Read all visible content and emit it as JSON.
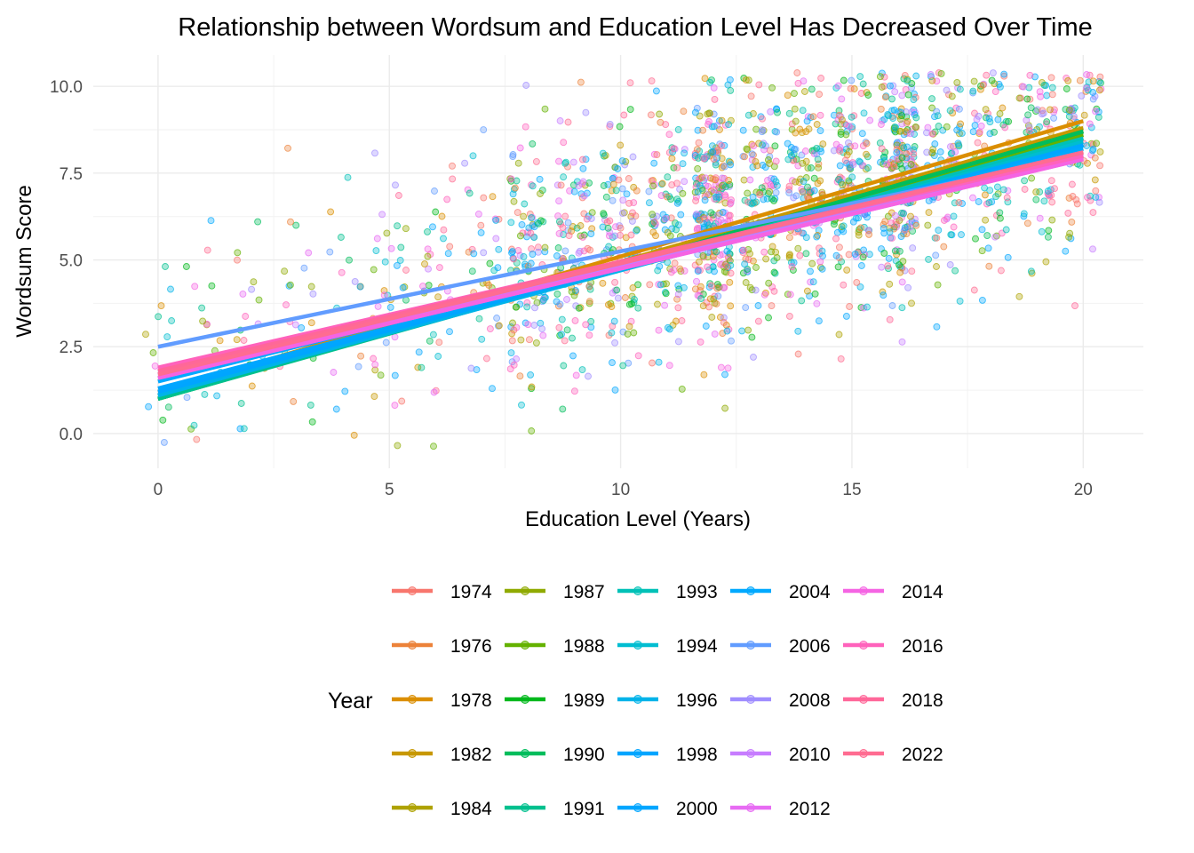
{
  "chart_data": {
    "type": "scatter",
    "title": "Relationship between Wordsum and Education Level Has Decreased Over Time",
    "xlabel": "Education Level (Years)",
    "ylabel": "Wordsum Score",
    "xlim": [
      -1.4,
      21.3
    ],
    "ylim": [
      -1.0,
      10.9
    ],
    "x_ticks": [
      0,
      5,
      10,
      15,
      20
    ],
    "x_tick_labels": [
      "0",
      "5",
      "10",
      "15",
      "20"
    ],
    "y_ticks": [
      0,
      2.5,
      5,
      7.5,
      10
    ],
    "y_tick_labels": [
      "0.0",
      "2.5",
      "5.0",
      "7.5",
      "10.0"
    ],
    "grid": true,
    "legend_title": "Year",
    "legend_position": "bottom",
    "points": "jittered scatter of individual respondents (Wordsum 0-10 by education 0-20 years), colored by survey year",
    "series": [
      {
        "name": "1974",
        "color": "#F8766D",
        "fit": {
          "x": [
            0,
            20
          ],
          "y": [
            1.1,
            8.5
          ]
        }
      },
      {
        "name": "1976",
        "color": "#EC8239",
        "fit": {
          "x": [
            0,
            20
          ],
          "y": [
            1.2,
            8.7
          ]
        }
      },
      {
        "name": "1978",
        "color": "#DB8E00",
        "fit": {
          "x": [
            0,
            20
          ],
          "y": [
            1.2,
            9.0
          ]
        }
      },
      {
        "name": "1982",
        "color": "#C79800",
        "fit": {
          "x": [
            0,
            20
          ],
          "y": [
            1.1,
            8.8
          ]
        }
      },
      {
        "name": "1984",
        "color": "#AEA200",
        "fit": {
          "x": [
            0,
            20
          ],
          "y": [
            1.0,
            8.7
          ]
        }
      },
      {
        "name": "1987",
        "color": "#8FAA00",
        "fit": {
          "x": [
            0,
            20
          ],
          "y": [
            1.0,
            8.6
          ]
        }
      },
      {
        "name": "1988",
        "color": "#64B200",
        "fit": {
          "x": [
            0,
            20
          ],
          "y": [
            1.0,
            8.6
          ]
        }
      },
      {
        "name": "1989",
        "color": "#00B81B",
        "fit": {
          "x": [
            0,
            20
          ],
          "y": [
            1.0,
            8.7
          ]
        }
      },
      {
        "name": "1990",
        "color": "#00BD5C",
        "fit": {
          "x": [
            0,
            20
          ],
          "y": [
            1.0,
            8.7
          ]
        }
      },
      {
        "name": "1991",
        "color": "#00C08E",
        "fit": {
          "x": [
            0,
            20
          ],
          "y": [
            1.0,
            8.5
          ]
        }
      },
      {
        "name": "1993",
        "color": "#00C1B7",
        "fit": {
          "x": [
            0,
            20
          ],
          "y": [
            1.1,
            8.5
          ]
        }
      },
      {
        "name": "1994",
        "color": "#00BDD1",
        "fit": {
          "x": [
            0,
            20
          ],
          "y": [
            1.1,
            8.4
          ]
        }
      },
      {
        "name": "1996",
        "color": "#00B3E9",
        "fit": {
          "x": [
            0,
            20
          ],
          "y": [
            1.1,
            8.3
          ]
        }
      },
      {
        "name": "1998",
        "color": "#00A5FF",
        "fit": {
          "x": [
            0,
            20
          ],
          "y": [
            1.2,
            8.3
          ]
        }
      },
      {
        "name": "2000",
        "color": "#00A6FF",
        "fit": {
          "x": [
            0,
            20
          ],
          "y": [
            1.3,
            8.3
          ]
        }
      },
      {
        "name": "2004",
        "color": "#00A9FF",
        "fit": {
          "x": [
            0,
            20
          ],
          "y": [
            1.5,
            8.2
          ]
        }
      },
      {
        "name": "2006",
        "color": "#619CFF",
        "fit": {
          "x": [
            0,
            20
          ],
          "y": [
            2.5,
            8.0
          ]
        }
      },
      {
        "name": "2008",
        "color": "#9F8CFF",
        "fit": {
          "x": [
            0,
            20
          ],
          "y": [
            1.8,
            8.0
          ]
        }
      },
      {
        "name": "2010",
        "color": "#C77CFF",
        "fit": {
          "x": [
            0,
            20
          ],
          "y": [
            1.7,
            7.9
          ]
        }
      },
      {
        "name": "2012",
        "color": "#E76BF3",
        "fit": {
          "x": [
            0,
            20
          ],
          "y": [
            1.6,
            7.9
          ]
        }
      },
      {
        "name": "2014",
        "color": "#F564E3",
        "fit": {
          "x": [
            0,
            20
          ],
          "y": [
            1.6,
            7.9
          ]
        }
      },
      {
        "name": "2016",
        "color": "#FF62BC",
        "fit": {
          "x": [
            0,
            20
          ],
          "y": [
            1.9,
            8.0
          ]
        }
      },
      {
        "name": "2018",
        "color": "#FF6799",
        "fit": {
          "x": [
            0,
            20
          ],
          "y": [
            1.8,
            8.1
          ]
        }
      },
      {
        "name": "2022",
        "color": "#FF6C91",
        "fit": {
          "x": [
            0,
            20
          ],
          "y": [
            1.7,
            8.1
          ]
        }
      }
    ]
  }
}
